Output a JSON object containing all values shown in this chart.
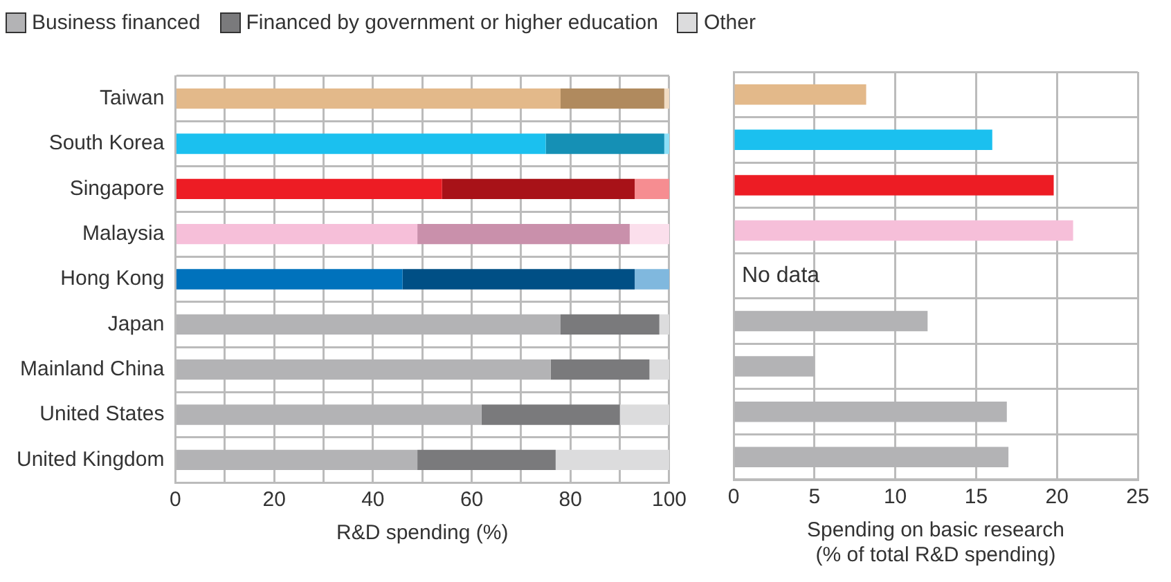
{
  "chart_data": [
    {
      "type": "bar",
      "orientation": "horizontal",
      "stacked": true,
      "xlabel": "R&D spending (%)",
      "legend": "top left",
      "grid": true,
      "categories": [
        "Taiwan",
        "South Korea",
        "Singapore",
        "Malaysia",
        "Hong Kong",
        "Japan",
        "Mainland China",
        "United States",
        "United Kingdom"
      ],
      "xlim": [
        0,
        100
      ],
      "xticks": [
        0,
        {
          "value": 10,
          "label": null
        },
        20,
        {
          "value": 30,
          "label": null
        },
        40,
        {
          "value": 50,
          "label": null
        },
        60,
        {
          "value": 70,
          "label": null
        },
        80,
        {
          "value": 90,
          "label": null
        },
        100
      ],
      "series": [
        {
          "name": "Business financed",
          "color": "#b3b3b5",
          "colors": [
            "#e3b98a",
            "#1bc0ef",
            "#ed1c24",
            "#f6bfd9",
            "#0072bc",
            "#b3b3b5",
            "#b3b3b5",
            "#b3b3b5",
            "#b3b3b5"
          ],
          "values": [
            78,
            75,
            54,
            49,
            46,
            78,
            76,
            62,
            49
          ]
        },
        {
          "name": "Financed by government or higher education",
          "color": "#7a7a7c",
          "colors": [
            "#b08a5e",
            "#1590b5",
            "#a81218",
            "#c990ab",
            "#004f85",
            "#7a7a7c",
            "#7a7a7c",
            "#7a7a7c",
            "#7a7a7c"
          ],
          "values": [
            21,
            24,
            39,
            43,
            47,
            20,
            20,
            28,
            28
          ]
        },
        {
          "name": "Other",
          "color": "#dcdcdd",
          "colors": [
            "#f1dcc4",
            "#8ddff7",
            "#f68d91",
            "#fbdfec",
            "#80b8de",
            "#dcdcdd",
            "#dcdcdd",
            "#dcdcdd",
            "#dcdcdd"
          ],
          "values": [
            1,
            1,
            7,
            8,
            7,
            2,
            4,
            10,
            23
          ]
        }
      ]
    },
    {
      "type": "bar",
      "orientation": "horizontal",
      "xlabel": "Spending on basic research\n(% of total R&D spending)",
      "grid": true,
      "tick_labels": "x",
      "xlim": [
        0,
        25
      ],
      "categories": [
        null,
        null,
        null,
        null,
        null,
        null,
        null,
        null,
        null
      ],
      "xticks": [
        0,
        5,
        10,
        15,
        20,
        25
      ],
      "colors": [
        "#e3b98a",
        "#1bc0ef",
        "#ed1c24",
        "#f6bfd9",
        "#0072bc",
        "#b3b3b5",
        "#b3b3b5",
        "#b3b3b5",
        "#b3b3b5"
      ],
      "values": [
        8.2,
        16,
        19.8,
        21,
        null,
        12,
        5,
        16.9,
        17
      ],
      "annotations": [
        "No data"
      ]
    }
  ]
}
